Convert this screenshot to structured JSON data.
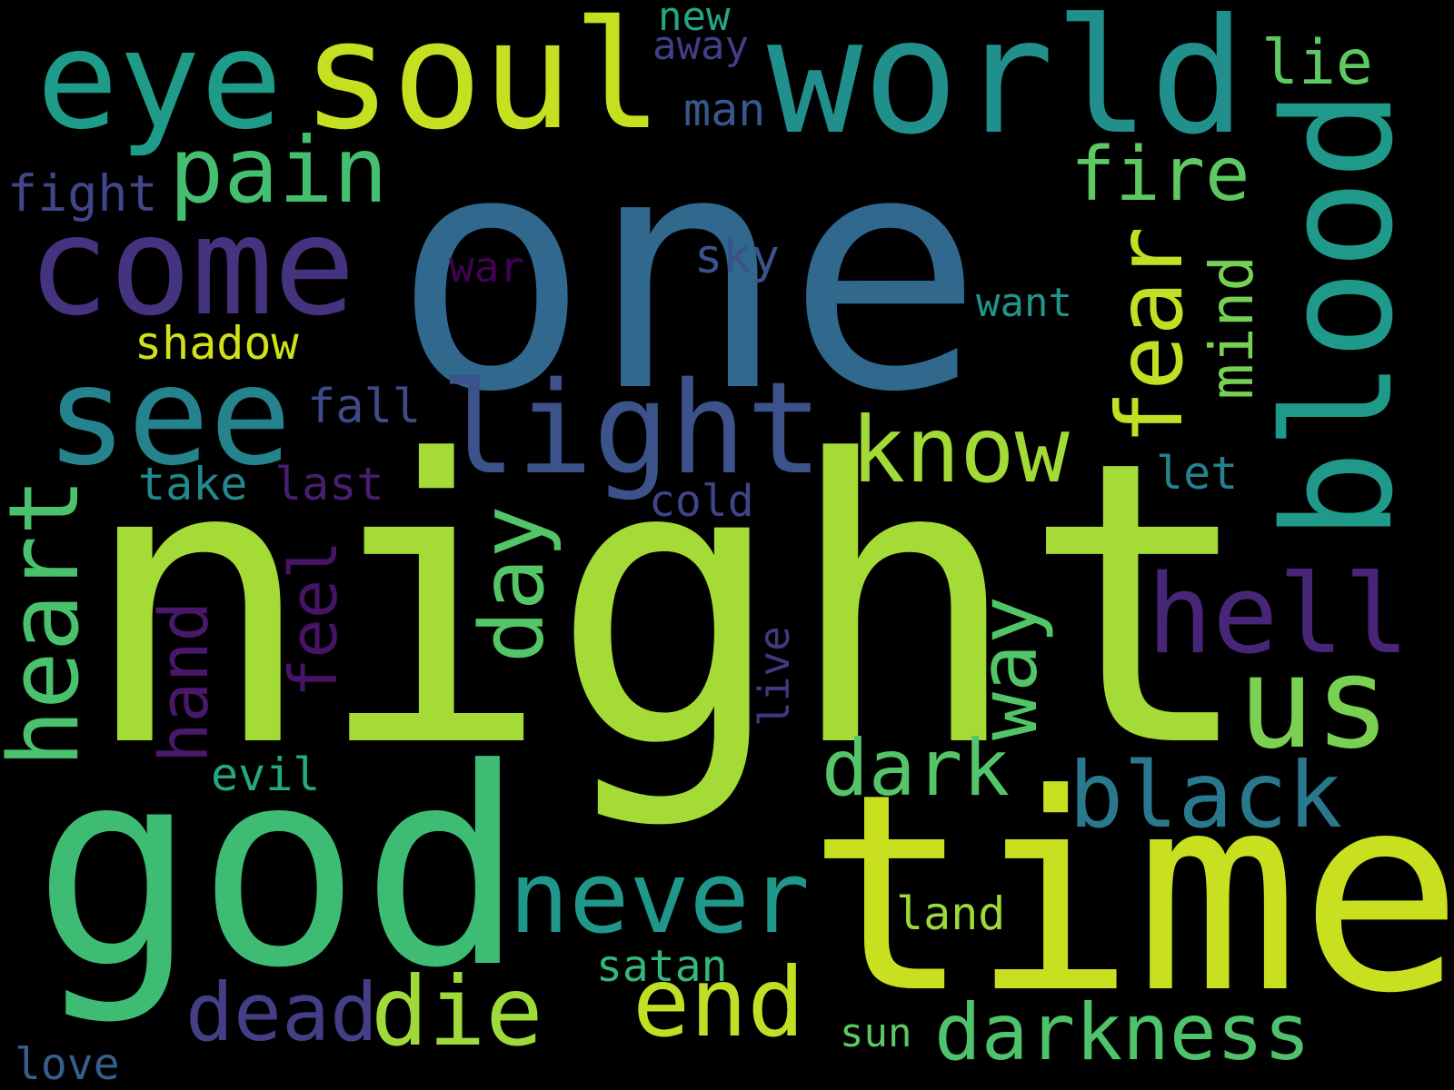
{
  "background": "#000000",
  "colormap": "viridis",
  "words": [
    {
      "text": "one",
      "color": "#31688e"
    },
    {
      "text": "night",
      "color": "#a5db36"
    },
    {
      "text": "time",
      "color": "#c8e020"
    },
    {
      "text": "god",
      "color": "#3fbc73"
    },
    {
      "text": "world",
      "color": "#21908d"
    },
    {
      "text": "soul",
      "color": "#c5e021"
    },
    {
      "text": "eye",
      "color": "#1e9c89"
    },
    {
      "text": "come",
      "color": "#46337f"
    },
    {
      "text": "see",
      "color": "#25838e"
    },
    {
      "text": "blood",
      "color": "#1f9a8a"
    },
    {
      "text": "light",
      "color": "#3b528b"
    },
    {
      "text": "pain",
      "color": "#44bf70"
    },
    {
      "text": "hell",
      "color": "#482677"
    },
    {
      "text": "us",
      "color": "#7ad151"
    },
    {
      "text": "never",
      "color": "#1f988b"
    },
    {
      "text": "know",
      "color": "#a2da37"
    },
    {
      "text": "black",
      "color": "#2a788e"
    },
    {
      "text": "heart",
      "color": "#4ac16d"
    },
    {
      "text": "die",
      "color": "#9fda3a"
    },
    {
      "text": "fear",
      "color": "#c2df23"
    },
    {
      "text": "end",
      "color": "#c0df25"
    },
    {
      "text": "darkness",
      "color": "#4ec36b"
    },
    {
      "text": "dead",
      "color": "#433e85"
    },
    {
      "text": "day",
      "color": "#55c667"
    },
    {
      "text": "way",
      "color": "#52c569"
    },
    {
      "text": "dark",
      "color": "#54c568"
    },
    {
      "text": "fire",
      "color": "#5ec962"
    },
    {
      "text": "feel",
      "color": "#471365"
    },
    {
      "text": "hand",
      "color": "#48186a"
    },
    {
      "text": "mind",
      "color": "#75d054"
    },
    {
      "text": "lie",
      "color": "#5ec962"
    },
    {
      "text": "fight",
      "color": "#404688"
    },
    {
      "text": "sky",
      "color": "#3b528b"
    },
    {
      "text": "shadow",
      "color": "#d0e11c"
    },
    {
      "text": "fall",
      "color": "#3e4a89"
    },
    {
      "text": "take",
      "color": "#24878e"
    },
    {
      "text": "last",
      "color": "#481f70"
    },
    {
      "text": "cold",
      "color": "#414487"
    },
    {
      "text": "let",
      "color": "#26818e"
    },
    {
      "text": "want",
      "color": "#1f958b"
    },
    {
      "text": "war",
      "color": "#440154"
    },
    {
      "text": "man",
      "color": "#38588c"
    },
    {
      "text": "away",
      "color": "#423f85"
    },
    {
      "text": "new",
      "color": "#22a785"
    },
    {
      "text": "live",
      "color": "#453781"
    },
    {
      "text": "evil",
      "color": "#23a983"
    },
    {
      "text": "land",
      "color": "#9bd93c"
    },
    {
      "text": "satan",
      "color": "#35b779"
    },
    {
      "text": "sun",
      "color": "#5cc863"
    },
    {
      "text": "love",
      "color": "#355f8d"
    }
  ]
}
